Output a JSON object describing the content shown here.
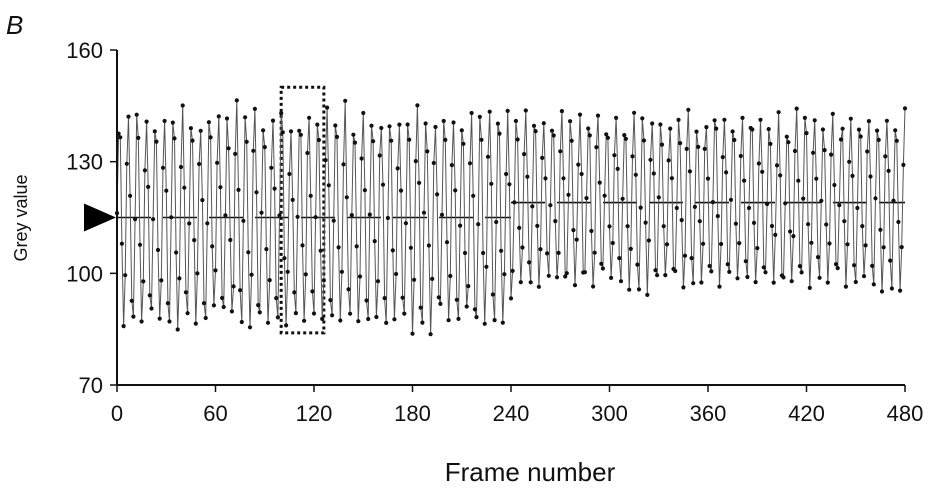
{
  "chart_data": {
    "type": "line",
    "panel_label": "B",
    "title": "",
    "xlabel": "Frame number",
    "ylabel": "Grey value",
    "xlim": [
      0,
      480
    ],
    "ylim": [
      70,
      160
    ],
    "x_ticks": [
      0,
      60,
      120,
      180,
      240,
      300,
      360,
      420,
      480
    ],
    "y_ticks": [
      70,
      100,
      130,
      160
    ],
    "grid": false,
    "legend": "none",
    "series": [
      {
        "style": "line-with-markers",
        "color": "#555555",
        "marker_color": "#111111",
        "period_frames": 5.5,
        "segments": [
          {
            "x_start": 0,
            "x_end": 240,
            "min": 84,
            "max": 145
          },
          {
            "x_start": 240,
            "x_end": 480,
            "min": 95,
            "max": 144
          }
        ],
        "x_end": 480
      }
    ],
    "threshold_lines": [
      {
        "x_start": 0,
        "x_end": 240,
        "y": 115,
        "style": "dashed"
      },
      {
        "x_start": 240,
        "x_end": 480,
        "y": 119,
        "style": "dashed"
      }
    ],
    "arrow_marker": {
      "y": 115,
      "shape": "right-pointing-triangle"
    },
    "highlight_box": {
      "x_start": 100,
      "x_end": 126,
      "y_low": 84,
      "y_high": 150,
      "style": "dotted"
    }
  }
}
